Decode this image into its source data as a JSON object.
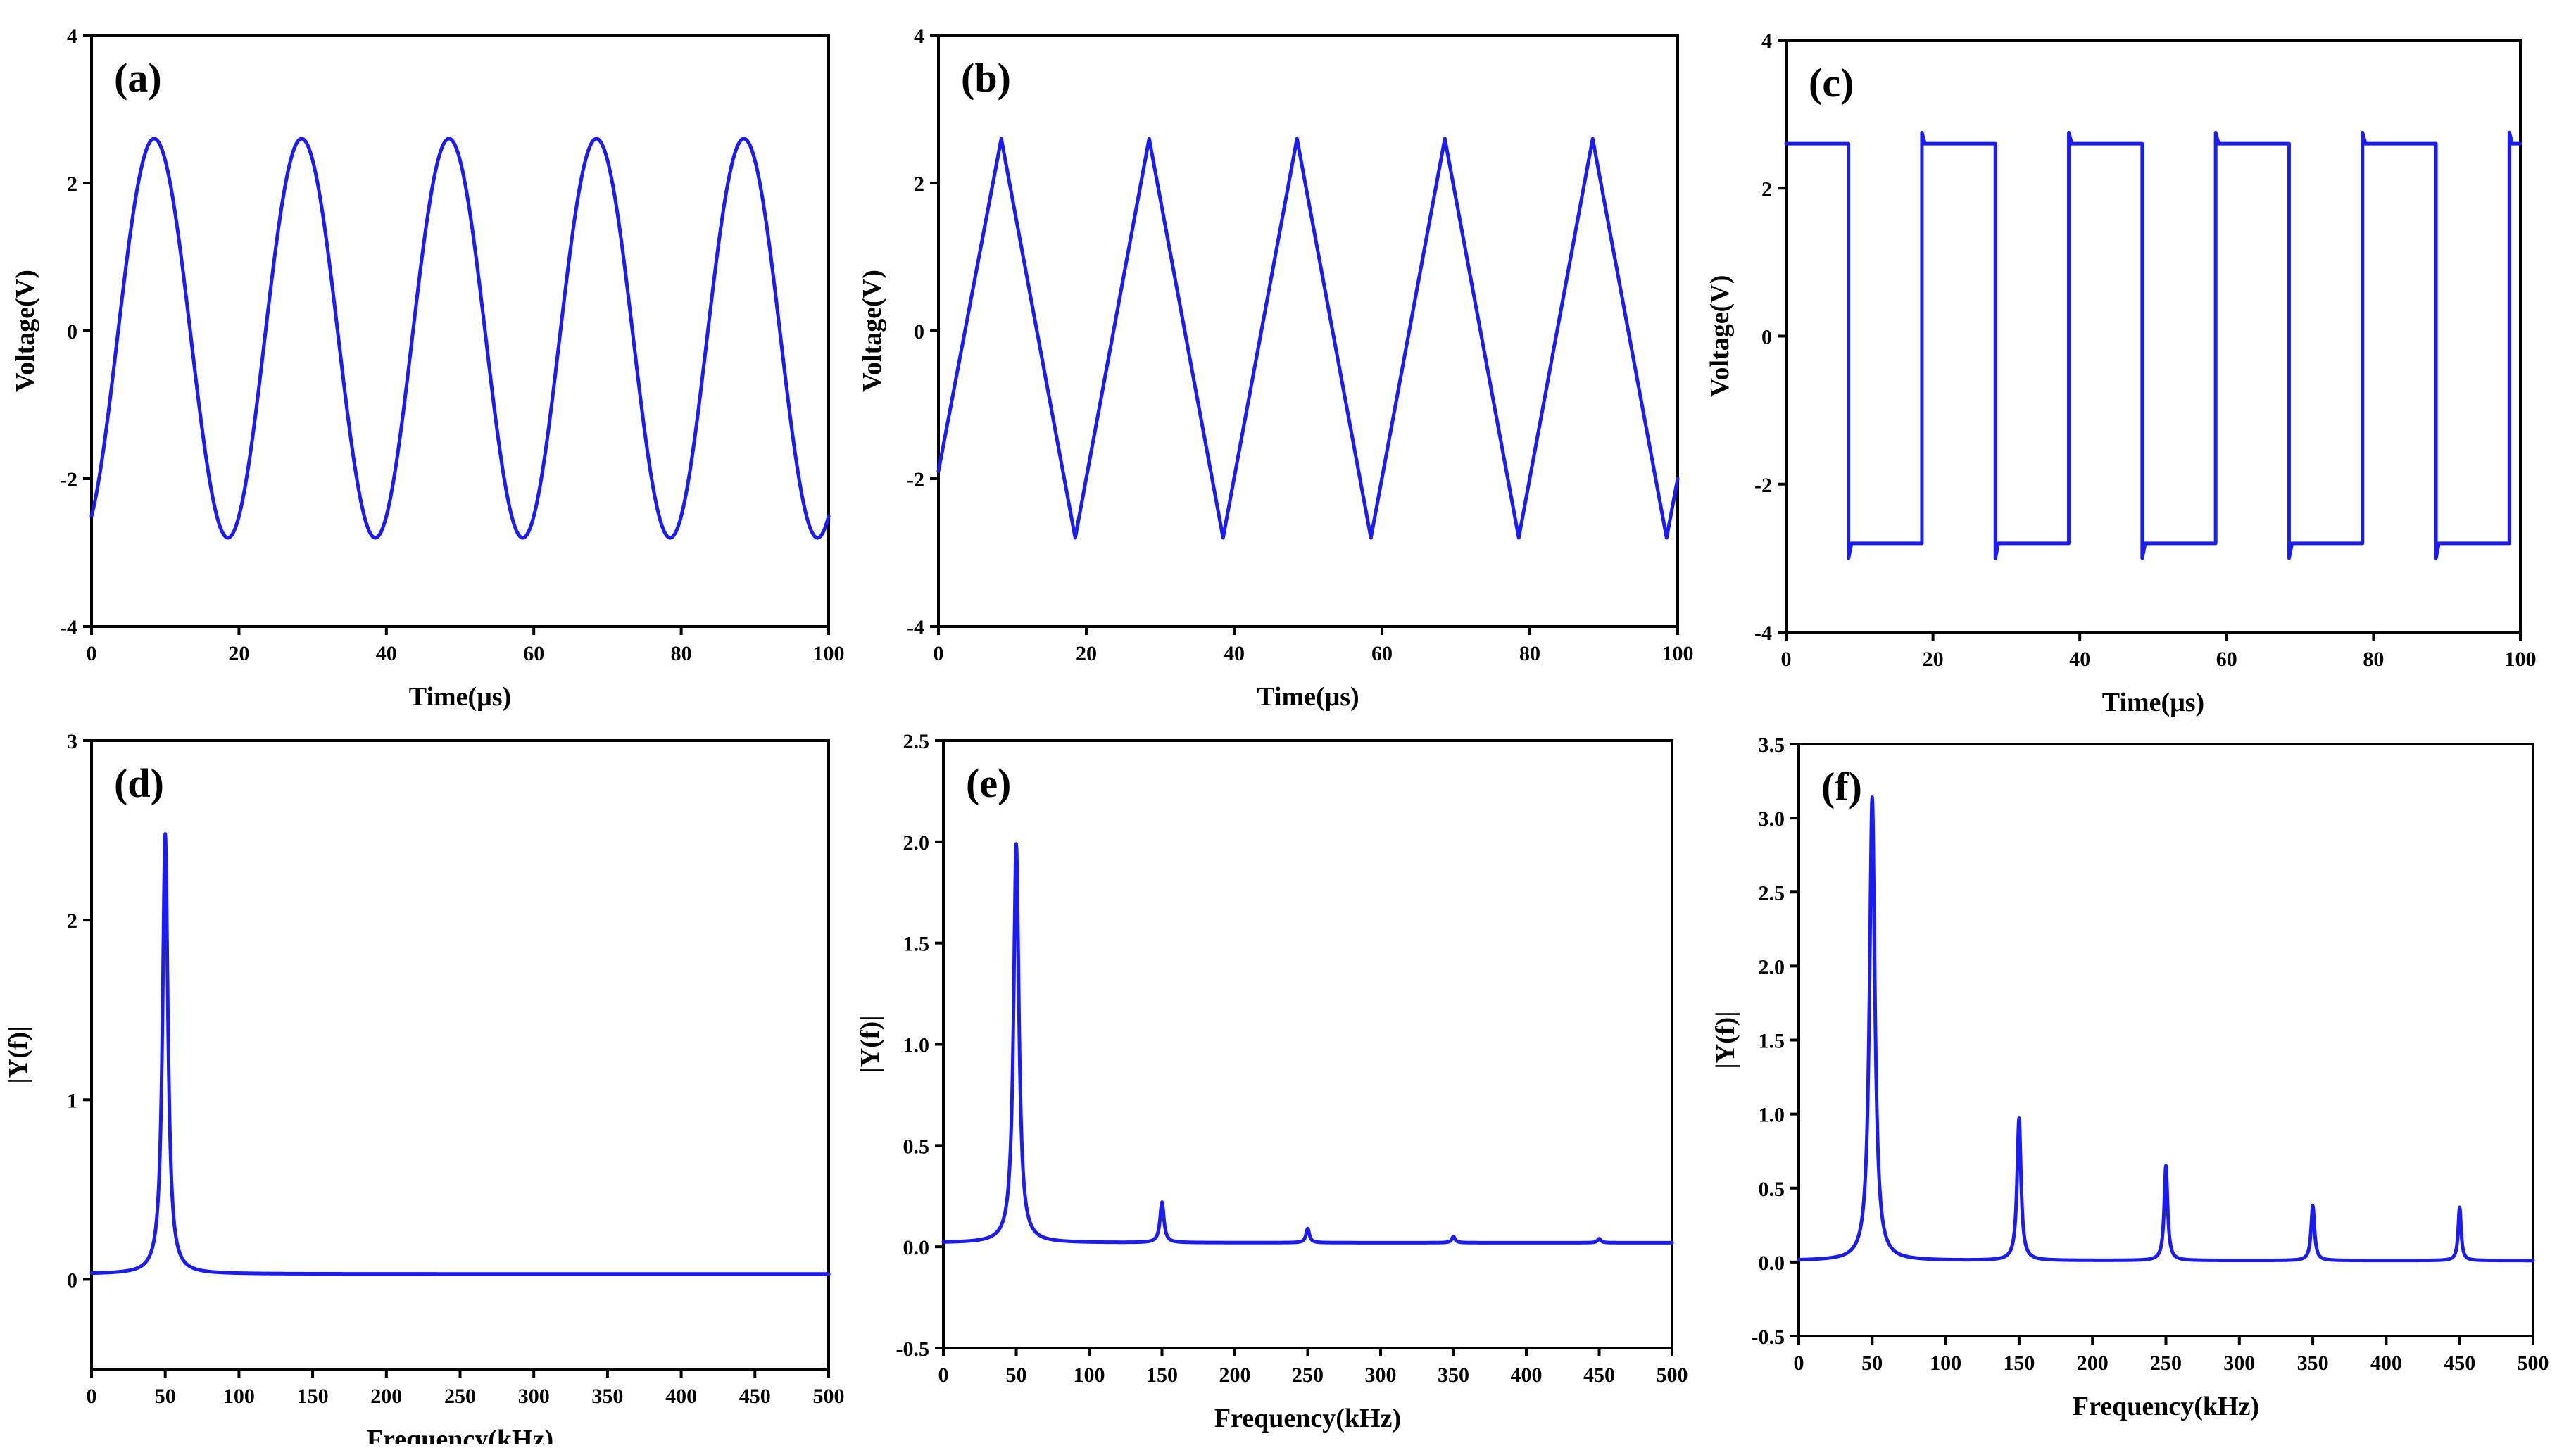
{
  "chart_data": [
    {
      "type": "line",
      "label": "(a)",
      "xlabel": "Time(μs)",
      "ylabel": "Voltage(V)",
      "xlim": [
        0,
        100
      ],
      "ylim": [
        -4,
        4
      ],
      "xticks": [
        0,
        20,
        40,
        60,
        80,
        100
      ],
      "yticks": [
        -4,
        -2,
        0,
        2,
        4
      ],
      "waveform": "sine",
      "amplitude": 2.7,
      "offset": -0.1,
      "period_us": 20,
      "first_peak_us": 8.5,
      "peaks": [
        {
          "x": 8.5,
          "y": 2.6
        },
        {
          "x": 28.5,
          "y": 2.6
        },
        {
          "x": 48.5,
          "y": 2.6
        },
        {
          "x": 68.5,
          "y": 2.6
        },
        {
          "x": 88.5,
          "y": 2.6
        }
      ],
      "troughs": [
        {
          "x": 18.5,
          "y": -2.8
        },
        {
          "x": 38.5,
          "y": -2.8
        },
        {
          "x": 58.5,
          "y": -2.8
        },
        {
          "x": 78.5,
          "y": -2.8
        },
        {
          "x": 98.5,
          "y": -2.8
        }
      ]
    },
    {
      "type": "line",
      "label": "(b)",
      "xlabel": "Time(μs)",
      "ylabel": "Voltage(V)",
      "xlim": [
        0,
        100
      ],
      "ylim": [
        -4,
        4
      ],
      "xticks": [
        0,
        20,
        40,
        60,
        80,
        100
      ],
      "yticks": [
        -4,
        -2,
        0,
        2,
        4
      ],
      "waveform": "triangle",
      "x": [
        0,
        8.5,
        18.5,
        28.5,
        38.5,
        48.5,
        58.5,
        68.5,
        78.5,
        88.5,
        98.5,
        100
      ],
      "y": [
        -1.9,
        2.6,
        -2.8,
        2.6,
        -2.8,
        2.6,
        -2.8,
        2.6,
        -2.8,
        2.6,
        -2.8,
        -2.0
      ]
    },
    {
      "type": "line",
      "label": "(c)",
      "xlabel": "Time(μs)",
      "ylabel": "Voltage(V)",
      "xlim": [
        0,
        100
      ],
      "ylim": [
        -4,
        4
      ],
      "xticks": [
        0,
        20,
        40,
        60,
        80,
        100
      ],
      "yticks": [
        -4,
        -2,
        0,
        2,
        4
      ],
      "waveform": "square",
      "high": 2.6,
      "low": -2.8,
      "overshoot_high": 2.75,
      "overshoot_low": -3.0,
      "edges": [
        8.5,
        18.5,
        28.5,
        38.5,
        48.5,
        58.5,
        68.5,
        78.5,
        88.5,
        98.5
      ]
    },
    {
      "type": "line",
      "label": "(d)",
      "xlabel": "Frequency(kHz)",
      "ylabel": "|Y(f)|",
      "xlim": [
        0,
        500
      ],
      "ylim": [
        -0.5,
        3
      ],
      "xticks": [
        0,
        50,
        100,
        150,
        200,
        250,
        300,
        350,
        400,
        450,
        500
      ],
      "yticks": [
        0,
        1,
        2,
        3
      ],
      "baseline": 0.03,
      "peaks": [
        {
          "freq": 50,
          "mag": 2.45,
          "width": 2.2
        }
      ]
    },
    {
      "type": "line",
      "label": "(e)",
      "xlabel": "Frequency(kHz)",
      "ylabel": "|Y(f)|",
      "xlim": [
        0,
        500
      ],
      "ylim": [
        -0.5,
        2.5
      ],
      "xticks": [
        0,
        50,
        100,
        150,
        200,
        250,
        300,
        350,
        400,
        450,
        500
      ],
      "yticks": [
        -0.5,
        0.0,
        0.5,
        1.0,
        1.5,
        2.0,
        2.5
      ],
      "ytick_labels": [
        "-0.5",
        "0.0",
        "0.5",
        "1.0",
        "1.5",
        "2.0",
        "2.5"
      ],
      "baseline": 0.02,
      "peaks": [
        {
          "freq": 50,
          "mag": 1.97,
          "width": 2.2
        },
        {
          "freq": 150,
          "mag": 0.2,
          "width": 1.6
        },
        {
          "freq": 250,
          "mag": 0.07,
          "width": 1.4
        },
        {
          "freq": 350,
          "mag": 0.03,
          "width": 1.4
        },
        {
          "freq": 450,
          "mag": 0.02,
          "width": 1.4
        }
      ]
    },
    {
      "type": "line",
      "label": "(f)",
      "xlabel": "Frequency(kHz)",
      "ylabel": "|Y(f)|",
      "xlim": [
        0,
        500
      ],
      "ylim": [
        -0.5,
        3.5
      ],
      "xticks": [
        0,
        50,
        100,
        150,
        200,
        250,
        300,
        350,
        400,
        450,
        500
      ],
      "yticks": [
        -0.5,
        0.0,
        0.5,
        1.0,
        1.5,
        2.0,
        2.5,
        3.0,
        3.5
      ],
      "ytick_labels": [
        "-0.5",
        "0.0",
        "0.5",
        "1.0",
        "1.5",
        "2.0",
        "2.5",
        "3.0",
        "3.5"
      ],
      "baseline": 0.01,
      "peaks": [
        {
          "freq": 50,
          "mag": 3.13,
          "width": 2.2
        },
        {
          "freq": 150,
          "mag": 0.96,
          "width": 1.6
        },
        {
          "freq": 250,
          "mag": 0.64,
          "width": 1.4
        },
        {
          "freq": 350,
          "mag": 0.37,
          "width": 1.4
        },
        {
          "freq": 450,
          "mag": 0.36,
          "width": 1.2
        }
      ]
    }
  ],
  "colors": {
    "series": "#1a1aff",
    "axis": "#000000",
    "background": "#ffffff"
  }
}
